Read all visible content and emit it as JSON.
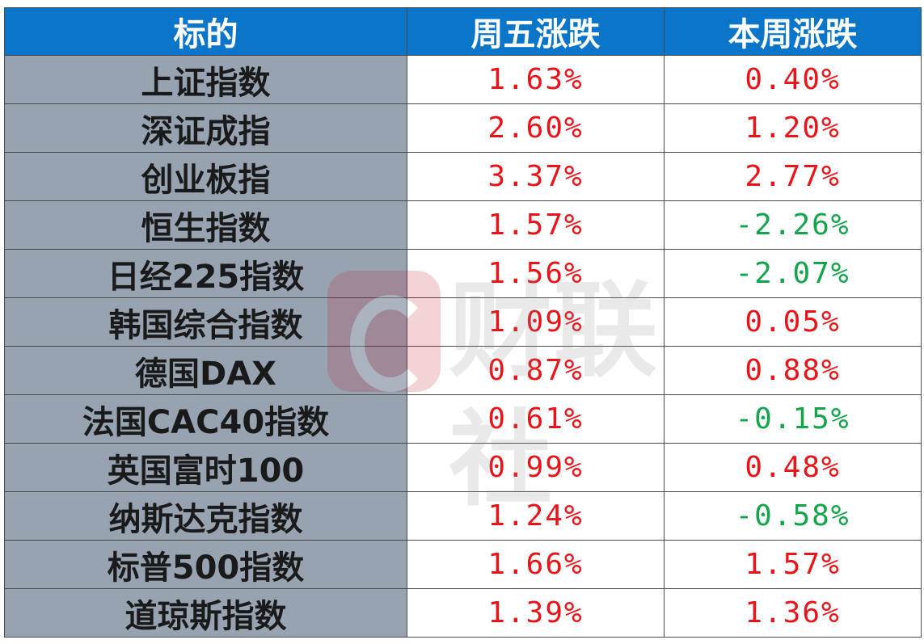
{
  "colors": {
    "header_bg": "#0b76c9",
    "name_bg": "#97a3b1",
    "positive": "#e8141a",
    "negative": "#12a54a",
    "watermark": "#c8122a"
  },
  "watermark": {
    "text": "财联社",
    "icon": "cls-logo-icon"
  },
  "table": {
    "headers": [
      "标的",
      "周五涨跌",
      "本周涨跌"
    ],
    "rows": [
      {
        "name": "上证指数",
        "friday": "1.63%",
        "week": "0.40%"
      },
      {
        "name": "深证成指",
        "friday": "2.60%",
        "week": "1.20%"
      },
      {
        "name": "创业板指",
        "friday": "3.37%",
        "week": "2.77%"
      },
      {
        "name": "恒生指数",
        "friday": "1.57%",
        "week": "-2.26%"
      },
      {
        "name": "日经225指数",
        "friday": "1.56%",
        "week": "-2.07%"
      },
      {
        "name": "韩国综合指数",
        "friday": "1.09%",
        "week": "0.05%"
      },
      {
        "name": "德国DAX",
        "friday": "0.87%",
        "week": "0.88%"
      },
      {
        "name": "法国CAC40指数",
        "friday": "0.61%",
        "week": "-0.15%"
      },
      {
        "name": "英国富时100",
        "friday": "0.99%",
        "week": "0.48%"
      },
      {
        "name": "纳斯达克指数",
        "friday": "1.24%",
        "week": "-0.58%"
      },
      {
        "name": "标普500指数",
        "friday": "1.66%",
        "week": "1.57%"
      },
      {
        "name": "道琼斯指数",
        "friday": "1.39%",
        "week": "1.36%"
      }
    ]
  }
}
